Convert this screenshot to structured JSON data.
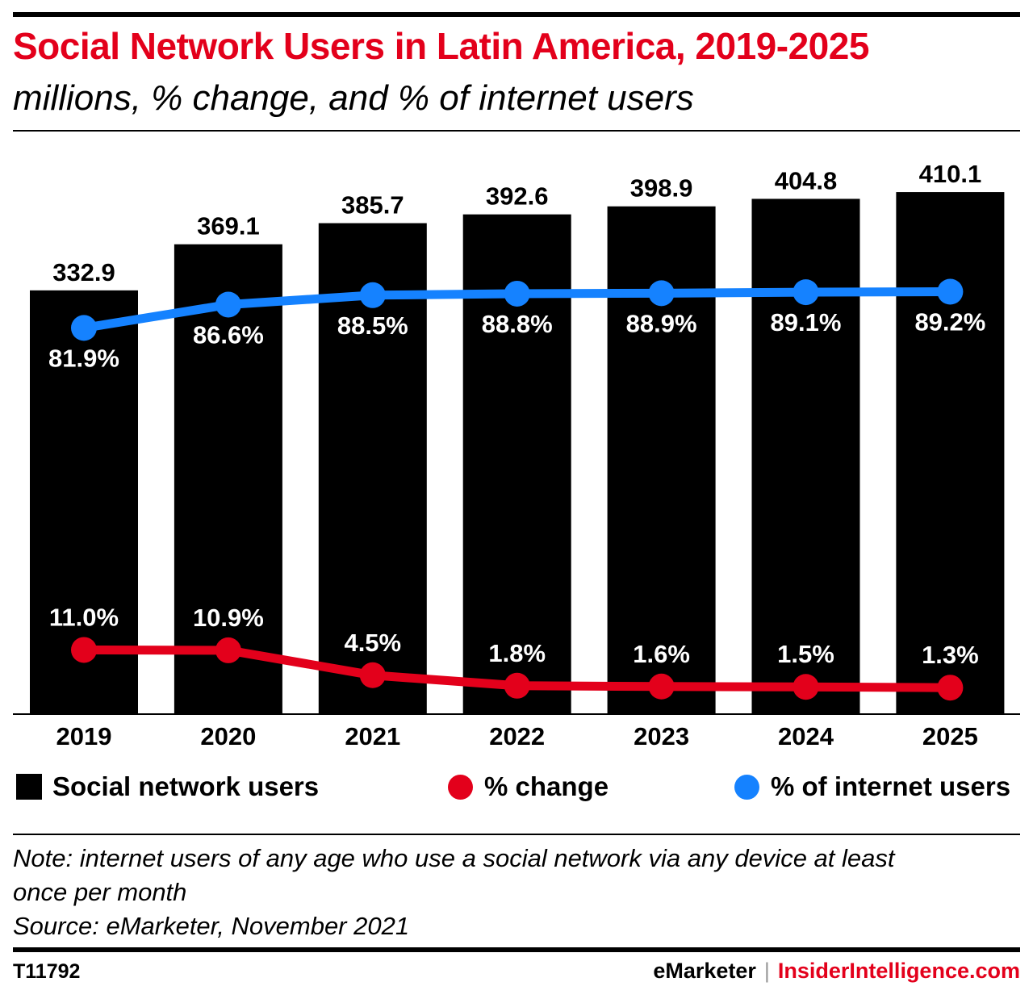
{
  "title": "Social Network Users in Latin America, 2019-2025",
  "subtitle": "millions, % change, and % of internet users",
  "chart_data": {
    "type": "bar",
    "categories": [
      "2019",
      "2020",
      "2021",
      "2022",
      "2023",
      "2024",
      "2025"
    ],
    "series": [
      {
        "name": "Social network users",
        "type": "bar",
        "color": "#000000",
        "values": [
          332.9,
          369.1,
          385.7,
          392.6,
          398.9,
          404.8,
          410.1
        ],
        "labels": [
          "332.9",
          "369.1",
          "385.7",
          "392.6",
          "398.9",
          "404.8",
          "410.1"
        ]
      },
      {
        "name": "% change",
        "type": "line",
        "color": "#e3001b",
        "values": [
          11.0,
          10.9,
          4.5,
          1.8,
          1.6,
          1.5,
          1.3
        ],
        "labels": [
          "11.0%",
          "10.9%",
          "4.5%",
          "1.8%",
          "1.6%",
          "1.5%",
          "1.3%"
        ]
      },
      {
        "name": "% of internet users",
        "type": "line",
        "color": "#1582ff",
        "values": [
          81.9,
          86.6,
          88.5,
          88.8,
          88.9,
          89.1,
          89.2
        ],
        "labels": [
          "81.9%",
          "86.6%",
          "88.5%",
          "88.8%",
          "88.9%",
          "89.1%",
          "89.2%"
        ]
      }
    ],
    "legend_position": "bottom",
    "grid": false
  },
  "legend": {
    "bars": "Social network users",
    "change": "% change",
    "internet": "% of internet users"
  },
  "note": {
    "line1": "Note: internet users of any age who use a social network via any device at least",
    "line2": "once per month",
    "source": "Source: eMarketer, November 2021"
  },
  "footer": {
    "id": "T11792",
    "emarketer": "eMarketer",
    "separator": "|",
    "insider": "InsiderIntelligence.com"
  }
}
